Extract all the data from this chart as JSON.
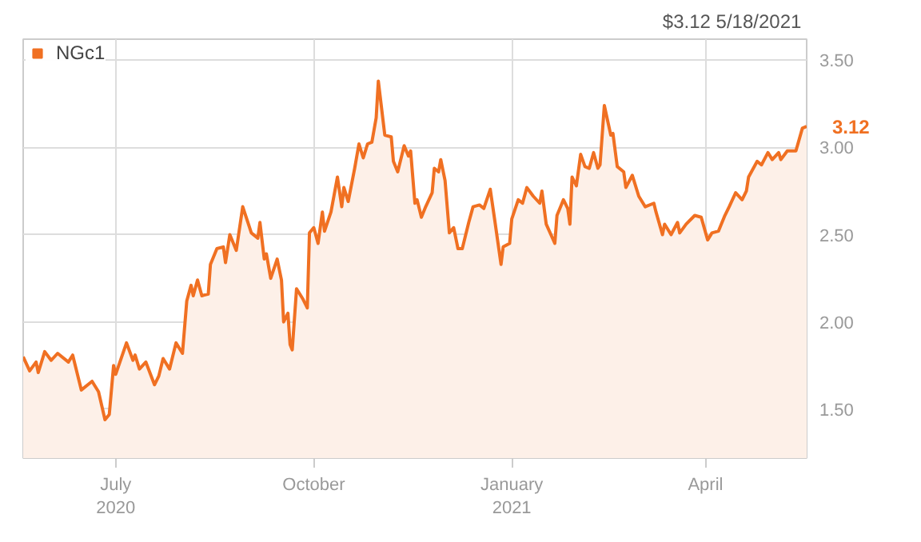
{
  "chart_data": {
    "type": "area",
    "x": [
      "2020-05-19",
      "2020-05-22",
      "2020-05-25",
      "2020-05-26",
      "2020-05-29",
      "2020-06-01",
      "2020-06-04",
      "2020-06-09",
      "2020-06-11",
      "2020-06-15",
      "2020-06-20",
      "2020-06-23",
      "2020-06-26",
      "2020-06-28",
      "2020-06-30",
      "2020-07-01",
      "2020-07-06",
      "2020-07-09",
      "2020-07-10",
      "2020-07-12",
      "2020-07-15",
      "2020-07-19",
      "2020-07-21",
      "2020-07-23",
      "2020-07-26",
      "2020-07-29",
      "2020-08-01",
      "2020-08-03",
      "2020-08-05",
      "2020-08-06",
      "2020-08-08",
      "2020-08-10",
      "2020-08-13",
      "2020-08-14",
      "2020-08-17",
      "2020-08-20",
      "2020-08-21",
      "2020-08-23",
      "2020-08-26",
      "2020-08-29",
      "2020-09-02",
      "2020-09-05",
      "2020-09-06",
      "2020-09-08",
      "2020-09-09",
      "2020-09-11",
      "2020-09-14",
      "2020-09-16",
      "2020-09-17",
      "2020-09-19",
      "2020-09-20",
      "2020-09-21",
      "2020-09-23",
      "2020-09-26",
      "2020-09-28",
      "2020-09-29",
      "2020-10-01",
      "2020-10-03",
      "2020-10-05",
      "2020-10-06",
      "2020-10-09",
      "2020-10-12",
      "2020-10-14",
      "2020-10-15",
      "2020-10-17",
      "2020-10-20",
      "2020-10-22",
      "2020-10-24",
      "2020-10-26",
      "2020-10-28",
      "2020-10-30",
      "2020-10-31",
      "2020-11-03",
      "2020-11-06",
      "2020-11-07",
      "2020-11-09",
      "2020-11-12",
      "2020-11-14",
      "2020-11-15",
      "2020-11-17",
      "2020-11-18",
      "2020-11-20",
      "2020-11-22",
      "2020-11-25",
      "2020-11-26",
      "2020-11-28",
      "2020-11-29",
      "2020-12-01",
      "2020-12-03",
      "2020-12-05",
      "2020-12-07",
      "2020-12-09",
      "2020-12-12",
      "2020-12-14",
      "2020-12-17",
      "2020-12-19",
      "2020-12-22",
      "2020-12-24",
      "2020-12-27",
      "2020-12-28",
      "2020-12-31",
      "2021-01-01",
      "2021-01-04",
      "2021-01-06",
      "2021-01-08",
      "2021-01-11",
      "2021-01-14",
      "2021-01-15",
      "2021-01-17",
      "2021-01-21",
      "2021-01-22",
      "2021-01-25",
      "2021-01-27",
      "2021-01-28",
      "2021-01-29",
      "2021-01-31",
      "2021-02-02",
      "2021-02-04",
      "2021-02-06",
      "2021-02-08",
      "2021-02-10",
      "2021-02-11",
      "2021-02-13",
      "2021-02-16",
      "2021-02-17",
      "2021-02-19",
      "2021-02-22",
      "2021-02-23",
      "2021-02-26",
      "2021-03-01",
      "2021-03-04",
      "2021-03-08",
      "2021-03-09",
      "2021-03-12",
      "2021-03-13",
      "2021-03-16",
      "2021-03-19",
      "2021-03-20",
      "2021-03-23",
      "2021-03-27",
      "2021-03-30",
      "2021-04-02",
      "2021-04-04",
      "2021-04-07",
      "2021-04-10",
      "2021-04-12",
      "2021-04-15",
      "2021-04-18",
      "2021-04-20",
      "2021-04-21",
      "2021-04-25",
      "2021-04-27",
      "2021-04-30",
      "2021-05-02",
      "2021-05-05",
      "2021-05-06",
      "2021-05-09",
      "2021-05-13",
      "2021-05-16",
      "2021-05-18"
    ],
    "series": [
      {
        "name": "NGc1",
        "color": "#f07022",
        "values": [
          1.8,
          1.72,
          1.77,
          1.71,
          1.83,
          1.78,
          1.82,
          1.77,
          1.81,
          1.61,
          1.66,
          1.6,
          1.44,
          1.47,
          1.75,
          1.7,
          1.88,
          1.78,
          1.81,
          1.73,
          1.77,
          1.64,
          1.69,
          1.79,
          1.73,
          1.88,
          1.82,
          2.12,
          2.21,
          2.15,
          2.24,
          2.15,
          2.16,
          2.33,
          2.42,
          2.43,
          2.34,
          2.5,
          2.41,
          2.66,
          2.51,
          2.48,
          2.57,
          2.36,
          2.39,
          2.25,
          2.36,
          2.24,
          2.0,
          2.05,
          1.87,
          1.84,
          2.19,
          2.13,
          2.08,
          2.51,
          2.54,
          2.45,
          2.63,
          2.52,
          2.63,
          2.83,
          2.66,
          2.77,
          2.69,
          2.88,
          3.02,
          2.94,
          3.02,
          3.03,
          3.17,
          3.38,
          3.07,
          3.06,
          2.92,
          2.86,
          3.01,
          2.95,
          2.98,
          2.68,
          2.7,
          2.6,
          2.66,
          2.74,
          2.88,
          2.86,
          2.93,
          2.81,
          2.51,
          2.54,
          2.42,
          2.42,
          2.57,
          2.66,
          2.67,
          2.65,
          2.76,
          2.59,
          2.33,
          2.43,
          2.45,
          2.59,
          2.7,
          2.68,
          2.77,
          2.72,
          2.68,
          2.75,
          2.56,
          2.45,
          2.61,
          2.7,
          2.65,
          2.56,
          2.83,
          2.78,
          2.96,
          2.89,
          2.88,
          2.97,
          2.88,
          2.9,
          3.24,
          3.07,
          3.08,
          2.89,
          2.86,
          2.77,
          2.84,
          2.72,
          2.66,
          2.68,
          2.63,
          2.5,
          2.56,
          2.5,
          2.57,
          2.51,
          2.56,
          2.61,
          2.6,
          2.47,
          2.51,
          2.52,
          2.61,
          2.66,
          2.74,
          2.7,
          2.75,
          2.83,
          2.92,
          2.9,
          2.97,
          2.93,
          2.97,
          2.93,
          2.98,
          2.98,
          3.11,
          3.12
        ]
      }
    ],
    "xlim": [
      "2020-05-19",
      "2021-05-18"
    ],
    "xticks": [
      {
        "value": "2020-07-01",
        "label": "July\n2020"
      },
      {
        "value": "2020-10-01",
        "label": "October"
      },
      {
        "value": "2021-01-01",
        "label": "January\n2021"
      },
      {
        "value": "2021-04-01",
        "label": "April"
      }
    ],
    "ylim": [
      1.22,
      3.62
    ],
    "yticks": [
      {
        "value": 1.5,
        "label": "1.50"
      },
      {
        "value": 2.0,
        "label": "2.00"
      },
      {
        "value": 2.5,
        "label": "2.50"
      },
      {
        "value": 3.0,
        "label": "3.00"
      },
      {
        "value": 3.5,
        "label": "3.50"
      }
    ],
    "annotations": [
      "$3.12  5/18/2021",
      {
        "text": "3.12",
        "x": "2021-05-18",
        "y": 3.12
      }
    ],
    "grid": true,
    "legend": "top left"
  }
}
